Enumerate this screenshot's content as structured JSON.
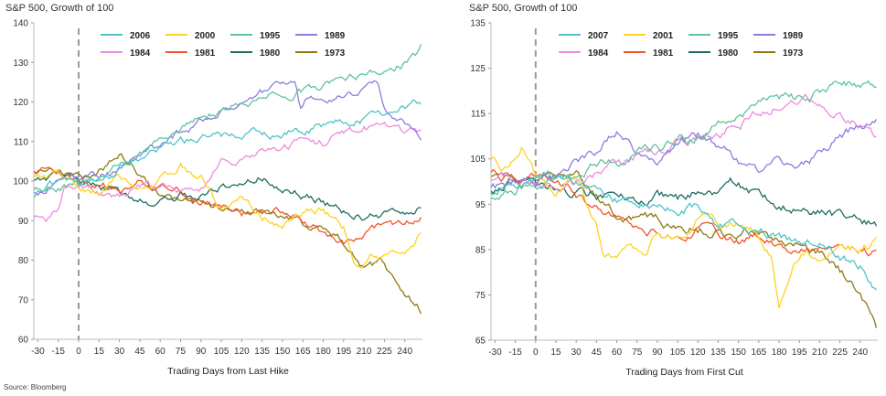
{
  "source": "Source: Bloomberg",
  "colors": {
    "2006": "#4FC3C8",
    "2007": "#4FC3C8",
    "2000": "#FFD21F",
    "2001": "#FFD21F",
    "1995": "#5EC49A",
    "1989": "#8E7CE0",
    "1984": "#EE8AE0",
    "1981": "#F0562A",
    "1980": "#1E6E63",
    "1973": "#8C7A10"
  },
  "chart_data": [
    {
      "type": "line",
      "title": "S&P 500, Growth of 100",
      "xlabel": "Trading Days from Last Hike",
      "xticks": [
        -30,
        -15,
        0,
        15,
        30,
        45,
        60,
        75,
        90,
        105,
        120,
        135,
        150,
        165,
        180,
        195,
        210,
        225,
        240
      ],
      "yticks": [
        60,
        70,
        80,
        90,
        100,
        110,
        120,
        130,
        140
      ],
      "xlim": [
        -33,
        253
      ],
      "ylim": [
        60,
        140
      ],
      "vline_x": 0,
      "legend": [
        "2006",
        "2000",
        "1995",
        "1989",
        "1984",
        "1981",
        "1980",
        "1973"
      ],
      "series": [
        {
          "name": "2006",
          "x": [
            -33,
            -20,
            0,
            20,
            45,
            75,
            105,
            135,
            165,
            195,
            210,
            225,
            235,
            253
          ],
          "values": [
            96,
            99,
            100,
            102,
            106,
            110,
            111,
            112,
            113,
            115,
            116,
            117,
            118,
            120
          ]
        },
        {
          "name": "2000",
          "x": [
            -33,
            -15,
            0,
            15,
            30,
            45,
            60,
            75,
            90,
            105,
            120,
            135,
            150,
            165,
            180,
            195,
            205,
            215,
            225,
            240,
            253
          ],
          "values": [
            102,
            101,
            98,
            97,
            101,
            99,
            101,
            104,
            101,
            93,
            96,
            91,
            89,
            92,
            93,
            88,
            78,
            81,
            80,
            82,
            88
          ]
        },
        {
          "name": "1995",
          "x": [
            -33,
            -15,
            0,
            15,
            30,
            45,
            60,
            75,
            90,
            105,
            120,
            135,
            150,
            165,
            180,
            195,
            210,
            225,
            240,
            250,
            253
          ],
          "values": [
            98,
            99,
            100,
            102,
            104,
            107,
            110,
            113,
            116,
            118,
            120,
            121,
            122,
            123,
            124,
            126,
            127,
            128,
            130,
            132,
            135
          ]
        },
        {
          "name": "1989",
          "x": [
            -33,
            -15,
            0,
            15,
            30,
            45,
            60,
            75,
            90,
            105,
            120,
            135,
            150,
            160,
            163,
            170,
            180,
            195,
            210,
            220,
            225,
            240,
            253
          ],
          "values": [
            97,
            99,
            100,
            101,
            103,
            106,
            109,
            112,
            115,
            118,
            120,
            122,
            124,
            124,
            118,
            122,
            121,
            122,
            123,
            124,
            118,
            115,
            112
          ]
        },
        {
          "name": "1984",
          "x": [
            -33,
            -25,
            -15,
            -10,
            0,
            15,
            30,
            45,
            60,
            75,
            90,
            105,
            120,
            135,
            150,
            165,
            180,
            195,
            210,
            225,
            240,
            253
          ],
          "values": [
            91,
            90,
            92,
            98,
            99,
            97,
            96,
            99,
            98,
            97,
            98,
            104,
            105,
            107,
            108,
            110,
            110,
            112,
            114,
            113,
            112,
            111
          ]
        },
        {
          "name": "1981",
          "x": [
            -33,
            -15,
            0,
            15,
            30,
            45,
            60,
            75,
            90,
            105,
            120,
            135,
            150,
            165,
            180,
            195,
            210,
            225,
            240,
            253
          ],
          "values": [
            103,
            102,
            100,
            99,
            98,
            100,
            98,
            97,
            95,
            94,
            91,
            93,
            92,
            89,
            87,
            85,
            86,
            88,
            89,
            91
          ]
        },
        {
          "name": "1980",
          "x": [
            -33,
            -15,
            0,
            15,
            30,
            45,
            60,
            75,
            90,
            105,
            120,
            135,
            150,
            165,
            180,
            195,
            210,
            225,
            240,
            253
          ],
          "values": [
            101,
            101,
            100,
            99,
            97,
            96,
            95,
            97,
            96,
            99,
            99,
            101,
            98,
            96,
            95,
            92,
            91,
            91,
            92,
            94
          ]
        },
        {
          "name": "1973",
          "x": [
            -33,
            -15,
            0,
            15,
            30,
            40,
            50,
            60,
            75,
            90,
            105,
            120,
            135,
            150,
            165,
            180,
            195,
            210,
            225,
            235,
            245,
            253
          ],
          "values": [
            103,
            102,
            100,
            103,
            106,
            104,
            101,
            96,
            95,
            94,
            93,
            93,
            92,
            91,
            89,
            88,
            85,
            78,
            79,
            74,
            70,
            67
          ]
        }
      ]
    },
    {
      "type": "line",
      "title": "S&P 500, Growth of 100",
      "xlabel": "Trading Days from First Cut",
      "xticks": [
        -30,
        -15,
        0,
        15,
        30,
        45,
        60,
        75,
        90,
        105,
        120,
        135,
        150,
        165,
        180,
        195,
        210,
        225,
        240
      ],
      "yticks": [
        65,
        75,
        85,
        95,
        105,
        115,
        125,
        135
      ],
      "xlim": [
        -33,
        253
      ],
      "ylim": [
        65,
        135
      ],
      "vline_x": 0,
      "legend": [
        "2007",
        "2001",
        "1995",
        "1989",
        "1984",
        "1981",
        "1980",
        "1973"
      ],
      "series": [
        {
          "name": "2007",
          "x": [
            -33,
            -15,
            0,
            15,
            30,
            45,
            60,
            75,
            90,
            105,
            120,
            135,
            150,
            165,
            180,
            195,
            210,
            225,
            240,
            253
          ],
          "values": [
            97,
            99,
            100,
            101,
            99,
            98,
            96,
            95,
            95,
            94,
            95,
            91,
            90,
            89,
            88,
            86,
            87,
            84,
            82,
            76
          ]
        },
        {
          "name": "2001",
          "x": [
            -33,
            -20,
            -10,
            0,
            15,
            30,
            45,
            50,
            60,
            70,
            80,
            90,
            105,
            120,
            135,
            150,
            165,
            175,
            180,
            190,
            200,
            210,
            225,
            240,
            253
          ],
          "values": [
            105,
            103,
            108,
            100,
            96,
            101,
            90,
            84,
            83,
            87,
            85,
            89,
            88,
            92,
            90,
            91,
            88,
            83,
            72,
            82,
            85,
            83,
            86,
            85,
            87
          ]
        },
        {
          "name": "1995",
          "x": [
            -33,
            -15,
            0,
            15,
            30,
            45,
            60,
            75,
            90,
            105,
            120,
            135,
            150,
            165,
            180,
            195,
            210,
            225,
            240,
            253
          ],
          "values": [
            96,
            98,
            100,
            101,
            102,
            104,
            104,
            106,
            107,
            109,
            110,
            112,
            114,
            117,
            118,
            118,
            120,
            121,
            121,
            122
          ]
        },
        {
          "name": "1989",
          "x": [
            -33,
            -15,
            0,
            15,
            30,
            45,
            60,
            75,
            90,
            105,
            120,
            135,
            150,
            155,
            165,
            180,
            195,
            210,
            225,
            240,
            253
          ],
          "values": [
            98,
            100,
            100,
            101,
            104,
            107,
            110,
            106,
            105,
            108,
            110,
            108,
            104,
            104,
            102,
            104,
            103,
            106,
            111,
            112,
            113
          ]
        },
        {
          "name": "1984",
          "x": [
            -33,
            -15,
            0,
            15,
            30,
            45,
            60,
            75,
            90,
            105,
            120,
            135,
            150,
            165,
            180,
            195,
            210,
            225,
            240,
            253
          ],
          "values": [
            100,
            101,
            100,
            99,
            100,
            102,
            104,
            105,
            106,
            108,
            109,
            110,
            113,
            115,
            117,
            118,
            117,
            115,
            113,
            110
          ]
        },
        {
          "name": "1981",
          "x": [
            -33,
            -15,
            0,
            15,
            30,
            45,
            60,
            75,
            90,
            105,
            120,
            135,
            150,
            165,
            180,
            195,
            210,
            225,
            240,
            253
          ],
          "values": [
            102,
            101,
            100,
            99,
            97,
            94,
            92,
            91,
            89,
            88,
            90,
            88,
            87,
            88,
            86,
            85,
            86,
            86,
            85,
            84
          ]
        },
        {
          "name": "1980",
          "x": [
            -33,
            -15,
            0,
            15,
            30,
            45,
            60,
            75,
            90,
            105,
            120,
            135,
            150,
            165,
            180,
            195,
            210,
            225,
            240,
            253
          ],
          "values": [
            98,
            100,
            100,
            99,
            98,
            97,
            96,
            96,
            97,
            96,
            98,
            98,
            100,
            97,
            95,
            94,
            93,
            92,
            91,
            90
          ]
        },
        {
          "name": "1973",
          "x": [
            -33,
            -15,
            0,
            15,
            30,
            45,
            60,
            75,
            90,
            105,
            120,
            135,
            150,
            165,
            180,
            195,
            210,
            225,
            240,
            253
          ],
          "values": [
            101,
            99,
            100,
            102,
            103,
            97,
            93,
            92,
            91,
            90,
            90,
            89,
            88,
            89,
            86,
            85,
            84,
            80,
            76,
            68
          ]
        }
      ]
    }
  ]
}
